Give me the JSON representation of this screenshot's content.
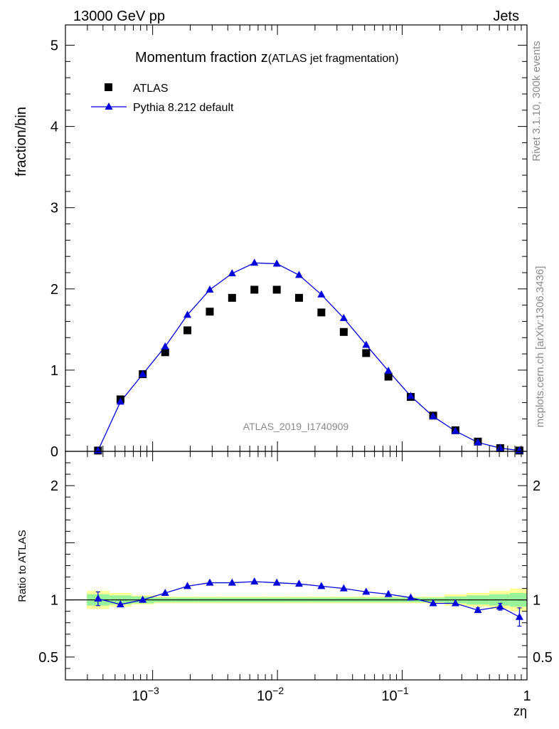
{
  "header": {
    "left": "13000 GeV pp",
    "right": "Jets"
  },
  "side_text": {
    "rivet": "Rivet 3.1.10,  300k events",
    "mcplots": "mcplots.cern.ch [arXiv:1306.3436]"
  },
  "colors": {
    "data": "#000000",
    "mc": "#0000dd",
    "band_inner": "#99f299",
    "band_outer": "#ffff99"
  },
  "chart_data": [
    {
      "type": "scatter",
      "panel": "main",
      "title": "Momentum fraction z",
      "subtitle": "(ATLAS jet fragmentation)",
      "ylabel": "fraction/bin",
      "xlabel": "zη",
      "xscale": "log",
      "xlim": [
        0.0002,
        1
      ],
      "ylim": [
        0,
        5.25
      ],
      "y_ticks": [
        "0",
        "1",
        "2",
        "3",
        "4",
        "5"
      ],
      "x_ticks": [
        "10^-3",
        "10^-2",
        "10^-1",
        "1"
      ],
      "watermark": "ATLAS_2019_I1740909",
      "legend": [
        "ATLAS",
        "Pythia 8.212 default"
      ],
      "legend_position": "top-left",
      "x": [
        0.000365,
        0.000552,
        0.000833,
        0.00126,
        0.0019,
        0.00287,
        0.00433,
        0.00654,
        0.00988,
        0.0149,
        0.0225,
        0.034,
        0.0514,
        0.0775,
        0.117,
        0.177,
        0.267,
        0.404,
        0.61,
        0.87
      ],
      "series": [
        {
          "name": "ATLAS",
          "marker": "square",
          "values": [
            0.01,
            0.64,
            0.95,
            1.22,
            1.49,
            1.72,
            1.89,
            1.99,
            1.99,
            1.89,
            1.71,
            1.47,
            1.21,
            0.92,
            0.67,
            0.44,
            0.26,
            0.12,
            0.04,
            0.01
          ]
        },
        {
          "name": "Pythia 8.212 default",
          "marker": "triangle",
          "values": [
            0.01,
            0.61,
            0.95,
            1.29,
            1.68,
            1.99,
            2.19,
            2.32,
            2.31,
            2.17,
            1.93,
            1.64,
            1.31,
            0.99,
            0.68,
            0.43,
            0.25,
            0.11,
            0.04,
            0.01
          ]
        }
      ]
    },
    {
      "type": "line",
      "panel": "ratio",
      "ylabel": "Ratio to ATLAS",
      "ylim": [
        0.3,
        2.3
      ],
      "y_ticks": [
        "0.5",
        "1",
        "2"
      ],
      "band_inner_halfwidth": [
        0.05,
        0.04,
        0.03,
        0.02,
        0.02,
        0.02,
        0.02,
        0.02,
        0.02,
        0.02,
        0.02,
        0.02,
        0.02,
        0.02,
        0.02,
        0.02,
        0.03,
        0.04,
        0.05,
        0.06
      ],
      "band_outer_halfwidth": [
        0.08,
        0.06,
        0.04,
        0.03,
        0.03,
        0.03,
        0.03,
        0.03,
        0.03,
        0.03,
        0.03,
        0.03,
        0.03,
        0.03,
        0.03,
        0.03,
        0.05,
        0.06,
        0.08,
        0.1
      ],
      "series": [
        {
          "name": "Pythia 8.212 default",
          "values": [
            1.01,
            0.96,
            1.0,
            1.06,
            1.12,
            1.15,
            1.15,
            1.16,
            1.15,
            1.14,
            1.12,
            1.1,
            1.07,
            1.05,
            1.02,
            0.97,
            0.97,
            0.91,
            0.94,
            0.85
          ],
          "errors": [
            0.06,
            0.01,
            0.01,
            0.01,
            0.01,
            0.01,
            0.01,
            0.01,
            0.01,
            0.01,
            0.01,
            0.01,
            0.01,
            0.01,
            0.01,
            0.01,
            0.01,
            0.02,
            0.03,
            0.08
          ]
        }
      ]
    }
  ]
}
